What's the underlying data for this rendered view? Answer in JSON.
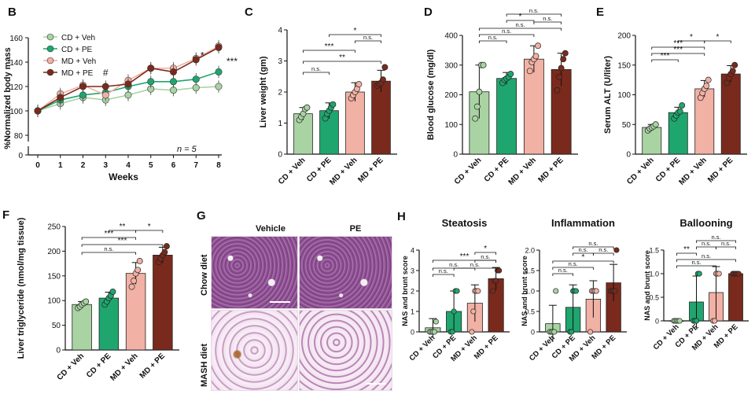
{
  "panel_labels": {
    "A": "B",
    "B": "C",
    "C": "D",
    "D": "E",
    "E": "F",
    "F": "G",
    "G": "H"
  },
  "chart_data": [
    {
      "panel": "B",
      "type": "line",
      "title": "",
      "xlabel": "Weeks",
      "ylabel": "%Normalized body mass",
      "x": [
        0,
        1,
        2,
        3,
        4,
        5,
        6,
        7,
        8
      ],
      "xticks": [
        "0",
        "1",
        "2",
        "3",
        "4",
        "5",
        "6",
        "7",
        "8"
      ],
      "ylim": [
        0,
        160
      ],
      "yticks": [
        "0",
        "80",
        "100",
        "120",
        "140",
        "160"
      ],
      "series": [
        {
          "name": "CD + Veh",
          "color": "#a9d3a3",
          "values": [
            100,
            106,
            111,
            109,
            113,
            118,
            117,
            119,
            120
          ]
        },
        {
          "name": "CD + PE",
          "color": "#1fa66e",
          "values": [
            100,
            109,
            113,
            115,
            120,
            124,
            124,
            126,
            132
          ]
        },
        {
          "name": "MD + Veh",
          "color": "#f1b1a4",
          "values": [
            100,
            114,
            121,
            113,
            125,
            135,
            135,
            143,
            153
          ]
        },
        {
          "name": "MD + PE",
          "color": "#7a2a1c",
          "values": [
            100,
            111,
            120,
            120,
            122,
            135,
            132,
            142,
            152
          ]
        }
      ],
      "annotations": [
        "#",
        "*",
        "***"
      ],
      "n_label": "n = 5",
      "legend": "top-left"
    },
    {
      "panel": "C",
      "type": "bar",
      "ylabel": "Liver weight (gm)",
      "categories": [
        "CD + Veh",
        "CD + PE",
        "MD + Veh",
        "MD + PE"
      ],
      "values": [
        1.3,
        1.4,
        2.0,
        2.35
      ],
      "errors": [
        0.2,
        0.25,
        0.3,
        0.35
      ],
      "points": [
        [
          1.1,
          1.2,
          1.3,
          1.45,
          1.5
        ],
        [
          1.15,
          1.3,
          1.4,
          1.5,
          1.6
        ],
        [
          1.8,
          1.9,
          2.0,
          2.1,
          2.25
        ],
        [
          2.2,
          2.25,
          2.3,
          2.4,
          2.8
        ]
      ],
      "ylim": [
        0,
        4
      ],
      "yticks": [
        "0",
        "1",
        "2",
        "3",
        "4"
      ],
      "significance": [
        "***",
        "**",
        "n.s.",
        "*",
        "n.s."
      ]
    },
    {
      "panel": "D",
      "type": "bar",
      "ylabel": "Blood glucose (mg/dl)",
      "categories": [
        "CD + Veh",
        "CD + PE",
        "MD + Veh",
        "MD + PE"
      ],
      "values": [
        210,
        255,
        320,
        285
      ],
      "errors": [
        90,
        20,
        45,
        55
      ],
      "points": [
        [
          120,
          160,
          210,
          300,
          300
        ],
        [
          240,
          250,
          255,
          260,
          270
        ],
        [
          280,
          310,
          320,
          330,
          365
        ],
        [
          215,
          260,
          290,
          320,
          340
        ]
      ],
      "ylim": [
        0,
        400
      ],
      "yticks": [
        "0",
        "100",
        "200",
        "300",
        "400"
      ],
      "significance": [
        "n.s.",
        "n.s.",
        "n.s.",
        "*",
        "n.s.",
        "n.s."
      ]
    },
    {
      "panel": "E",
      "type": "bar",
      "ylabel": "Serum ALT (U/liter)",
      "categories": [
        "CD + Veh",
        "CD + PE",
        "MD + Veh",
        "MD + PE"
      ],
      "values": [
        45,
        70,
        110,
        135
      ],
      "errors": [
        5,
        9,
        14,
        14
      ],
      "points": [
        [
          40,
          43,
          45,
          47,
          50
        ],
        [
          60,
          65,
          70,
          72,
          82
        ],
        [
          95,
          103,
          110,
          115,
          125
        ],
        [
          120,
          128,
          135,
          140,
          150
        ]
      ],
      "ylim": [
        0,
        200
      ],
      "yticks": [
        "0",
        "50",
        "100",
        "150",
        "200"
      ],
      "significance": [
        "***",
        "*",
        "***",
        "***",
        "*"
      ]
    },
    {
      "panel": "F",
      "type": "bar",
      "ylabel": "Liver triglyceride (nmol/mg tissue)",
      "categories": [
        "CD + Veh",
        "CD + PE",
        "MD + Veh",
        "MD + PE"
      ],
      "values": [
        92,
        105,
        155,
        192
      ],
      "errors": [
        6,
        12,
        22,
        16
      ],
      "points": [
        [
          85,
          88,
          92,
          95,
          98
        ],
        [
          92,
          98,
          105,
          110,
          118
        ],
        [
          128,
          140,
          155,
          162,
          180
        ],
        [
          178,
          185,
          192,
          198,
          210
        ]
      ],
      "ylim": [
        0,
        250
      ],
      "yticks": [
        "0",
        "50",
        "100",
        "150",
        "200",
        "250"
      ],
      "significance": [
        "***",
        "***",
        "**",
        "*",
        "n.s."
      ]
    },
    {
      "panel": "H",
      "type": "bar",
      "title": "Steatosis",
      "ylabel": "NAS and brunt score",
      "categories": [
        "CD + Veh",
        "CD + PE",
        "MD + Veh",
        "MD + PE"
      ],
      "values": [
        0.2,
        1.0,
        1.4,
        2.6
      ],
      "errors": [
        0.45,
        1.0,
        0.9,
        0.55
      ],
      "points": [
        [
          0,
          0,
          0,
          0,
          0.5
        ],
        [
          0,
          0,
          1.0,
          2.0,
          2.0
        ],
        [
          0,
          1.0,
          2.0,
          2.0,
          2.0
        ],
        [
          2.0,
          2.5,
          2.5,
          3.0,
          3.0
        ]
      ],
      "ylim": [
        0,
        4
      ],
      "yticks": [
        "0",
        "1",
        "2",
        "3",
        "4"
      ],
      "significance": [
        "*",
        "***",
        "n.s.",
        "n.s.",
        "n.s.",
        "n.s."
      ]
    },
    {
      "panel": "H",
      "type": "bar",
      "title": "Inflammation",
      "ylabel": "NAS and brunt score",
      "categories": [
        "CD + Veh",
        "CD + PE",
        "MD + Veh",
        "MD + PE"
      ],
      "values": [
        0.2,
        0.6,
        0.8,
        1.2
      ],
      "errors": [
        0.45,
        0.55,
        0.45,
        0.45
      ],
      "points": [
        [
          0,
          0,
          0,
          0,
          1.0
        ],
        [
          0,
          0,
          1.0,
          1.0,
          1.0
        ],
        [
          0,
          1.0,
          1.0,
          1.0,
          1.0
        ],
        [
          1.0,
          1.0,
          1.0,
          1.0,
          2.0
        ]
      ],
      "ylim": [
        0,
        2.0
      ],
      "yticks": [
        "0",
        "0.5",
        "1.0",
        "1.5",
        "2.0"
      ],
      "significance": [
        "n.s.",
        "n.s.",
        "n.s.",
        "n.s.",
        "n.s.",
        "*"
      ]
    },
    {
      "panel": "H",
      "type": "bar",
      "title": "Ballooning",
      "ylabel": "NAS and brunt score",
      "categories": [
        "CD + Veh",
        "CD + PE",
        "MD + Veh",
        "MD + PE"
      ],
      "values": [
        0.0,
        0.4,
        0.6,
        1.0
      ],
      "errors": [
        0.0,
        0.55,
        0.55,
        0.0
      ],
      "points": [
        [
          0,
          0,
          0,
          0,
          0
        ],
        [
          0,
          0,
          0,
          1.0,
          1.0
        ],
        [
          0,
          0,
          1.0,
          1.0,
          1.0
        ],
        [
          1.0,
          1.0,
          1.0,
          1.0,
          1.0
        ]
      ],
      "ylim": [
        0,
        1.5
      ],
      "yticks": [
        "0",
        "0.5",
        "1.0",
        "1.5"
      ],
      "significance": [
        "n.s.",
        "n.s.",
        "n.s.",
        "n.s.",
        "n.s.",
        "**"
      ]
    }
  ],
  "histology": {
    "panel": "G",
    "col_labels": [
      "Vehicle",
      "PE"
    ],
    "row_labels": [
      "Chow diet",
      "MASH diet"
    ]
  },
  "group_colors": {
    "CD + Veh": "#a9d3a3",
    "CD + PE": "#1fa66e",
    "MD + Veh": "#f1b1a4",
    "MD + PE": "#7a2a1c"
  }
}
